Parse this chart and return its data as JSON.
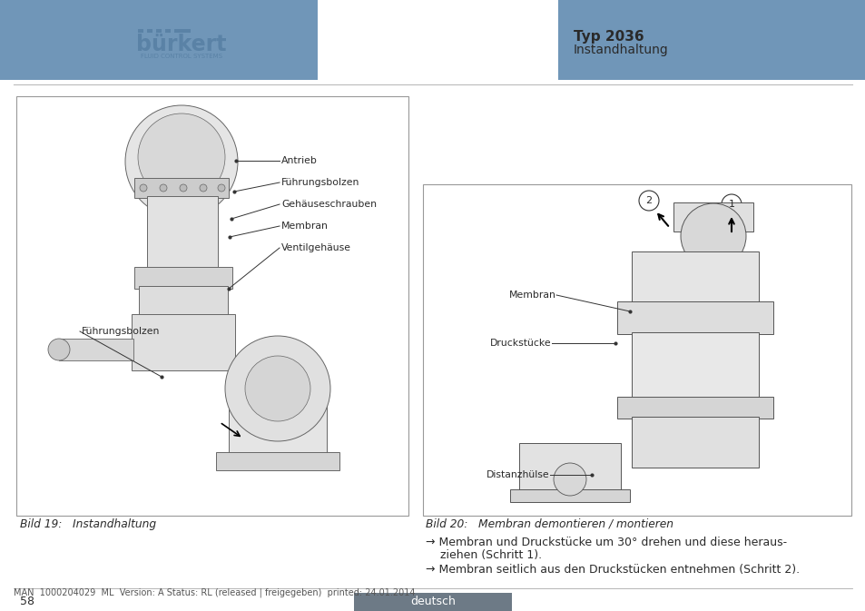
{
  "title_bold": "Typ 2036",
  "title_sub": "Instandhaltung",
  "header_blue": "#7096b8",
  "bg_white": "#ffffff",
  "text_dark": "#2a2a2a",
  "text_medium": "#555555",
  "burkert_blue": "#5a82a6",
  "footer_bg": "#6d7a86",
  "footer_text": "deutsch",
  "page_num": "58",
  "footer_line": "MAN  1000204029  ML  Version: A Status: RL (released | freigegeben)  printed: 24.01.2014",
  "caption_left": "Bild 19:   Instandhaltung",
  "caption_right": "Bild 20:   Membran demontieren / montieren",
  "bullet1_line1": "→ Membran und Druckstücke um 30° drehen und diese heraus-",
  "bullet1_line2": "    ziehen (Schritt 1).",
  "bullet2": "→ Membran seitlich aus den Druckstücken entnehmen (Schritt 2)."
}
